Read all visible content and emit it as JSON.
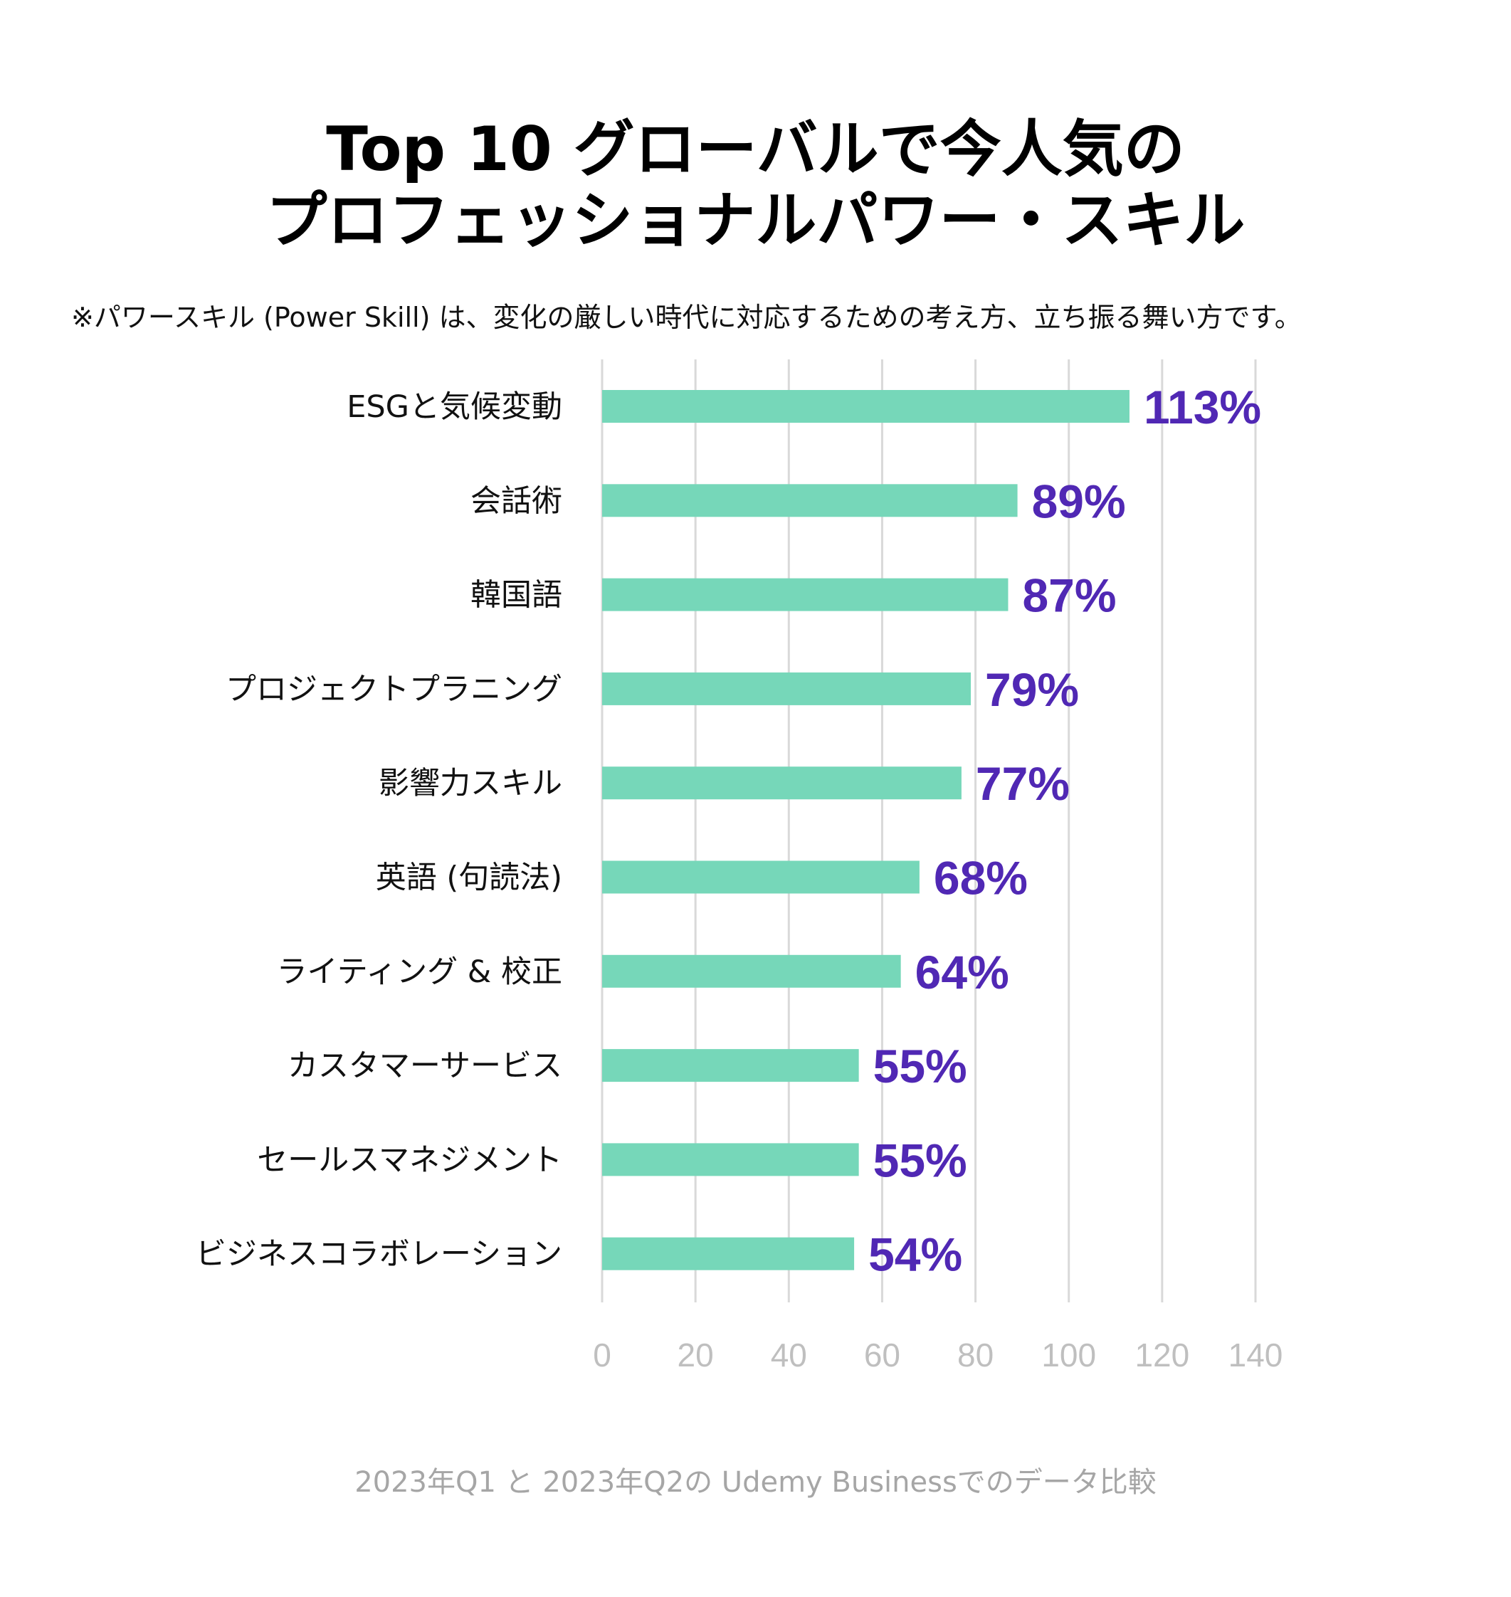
{
  "title": {
    "line1": "Top 10 グローバルで今人気の",
    "line2": "プロフェッショナルパワー・スキル"
  },
  "subtitle": "※パワースキル (Power Skill) は、変化の厳しい時代に対応するための考え方、立ち振る舞い方です。",
  "footnote": "2023年Q1 と 2023年Q2の Udemy Businessでのデータ比較",
  "colors": {
    "bar": "#76d7b9",
    "value_label": "#5028b4",
    "grid": "#d9d9d9",
    "tick": "#bfbfbf"
  },
  "chart_data": {
    "type": "bar",
    "orientation": "horizontal",
    "categories": [
      "ESGと気候変動",
      "会話術",
      "韓国語",
      "プロジェクトプラニング",
      "影響力スキル",
      "英語 (句読法)",
      "ライティング & 校正",
      "カスタマーサービス",
      "セールスマネジメント",
      "ビジネスコラボレーション"
    ],
    "values": [
      113,
      89,
      87,
      79,
      77,
      68,
      64,
      55,
      55,
      54
    ],
    "value_labels": [
      "113%",
      "89%",
      "87%",
      "79%",
      "77%",
      "68%",
      "64%",
      "55%",
      "55%",
      "54%"
    ],
    "xlim": [
      0,
      140
    ],
    "xticks": [
      0,
      20,
      40,
      60,
      80,
      100,
      120,
      140
    ],
    "xtick_labels": [
      "0",
      "20",
      "40",
      "60",
      "80",
      "100",
      "120",
      "140"
    ],
    "grid": true,
    "xlabel": "",
    "ylabel": ""
  }
}
